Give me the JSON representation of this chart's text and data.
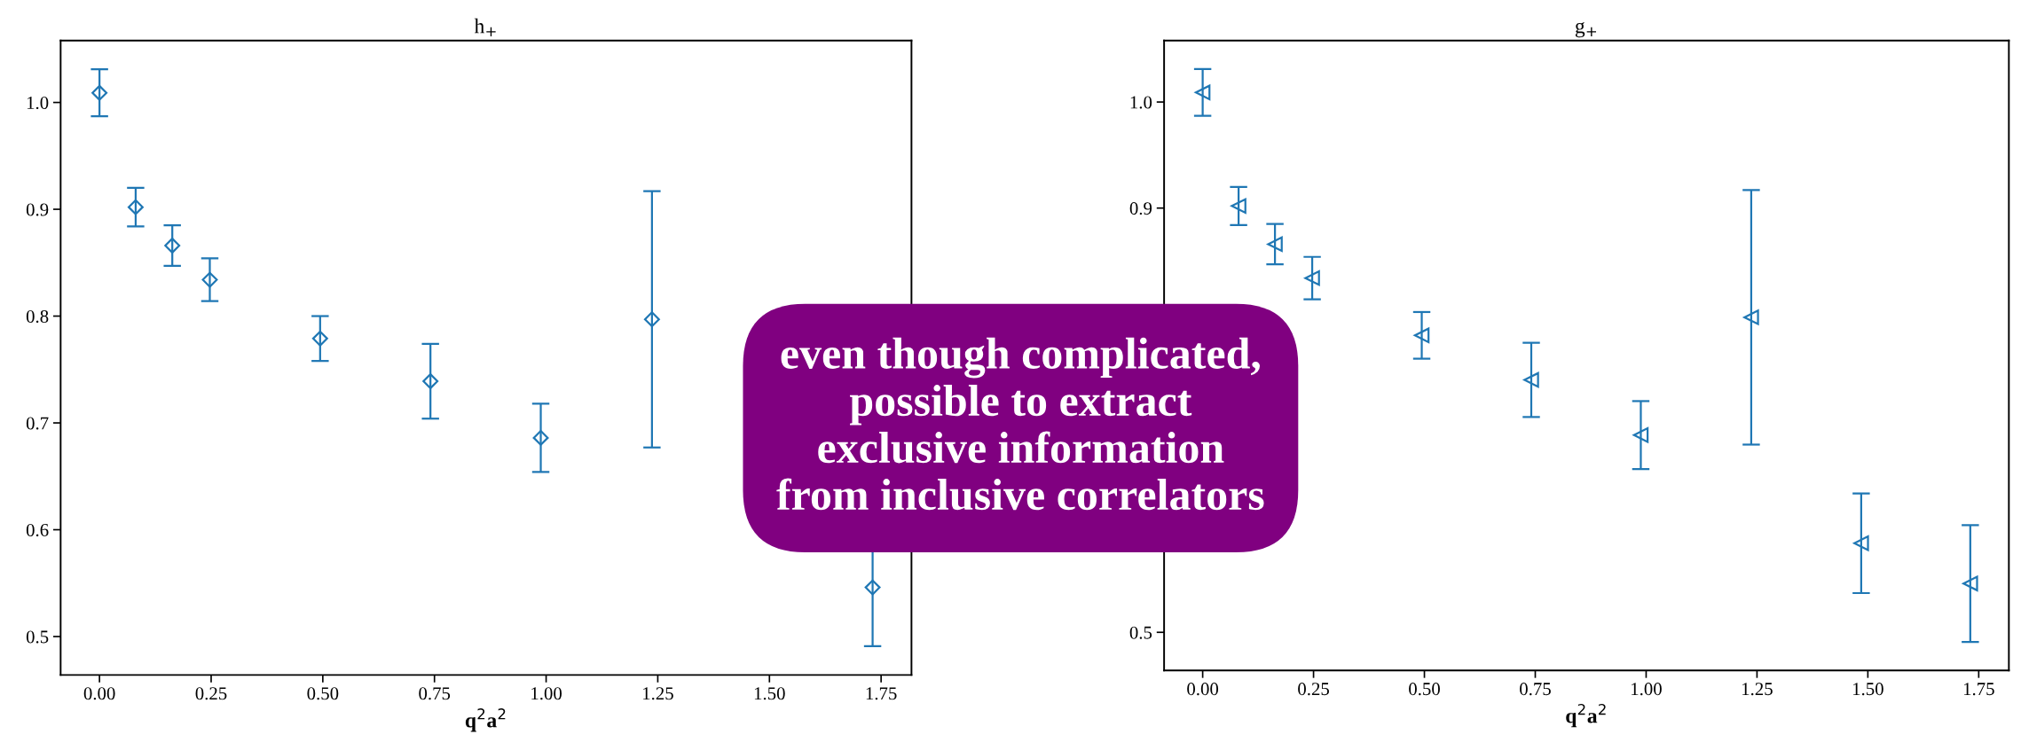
{
  "chart_data": [
    {
      "type": "scatter",
      "title": "h$_{+}$",
      "xlabel": "q$^{2}$a$^{2}$",
      "marker": "diamond",
      "grid": false,
      "legend": false,
      "x": [
        0.0,
        0.081,
        0.163,
        0.247,
        0.494,
        0.741,
        0.988,
        1.237,
        1.485,
        1.731
      ],
      "series": [
        {
          "color": "#1f77b4",
          "values": [
            1.009,
            0.902,
            0.866,
            0.834,
            0.779,
            0.739,
            0.686,
            0.797,
            null,
            0.546
          ],
          "errors": [
            0.022,
            0.018,
            0.019,
            0.02,
            0.021,
            0.035,
            0.032,
            0.12,
            null,
            0.055
          ]
        }
      ],
      "xlim": [
        -0.087,
        1.818
      ],
      "ylim": [
        0.464,
        1.058
      ],
      "xticks": [
        {
          "value": 0,
          "label": "0.00"
        },
        {
          "value": 0.25,
          "label": "0.25"
        },
        {
          "value": 0.5,
          "label": "0.50"
        },
        {
          "value": 0.75,
          "label": "0.75"
        },
        {
          "value": 1,
          "label": "1.00"
        },
        {
          "value": 1.25,
          "label": "1.25"
        },
        {
          "value": 1.5,
          "label": "1.50"
        },
        {
          "value": 1.75,
          "label": "1.75"
        }
      ],
      "yticks": [
        0.5,
        0.6,
        0.7,
        0.8,
        0.9,
        {
          "value": 1.0,
          "label": "1.0"
        }
      ],
      "annotations": [
        "even though complicated,\npossible to extract\nexclusive information\nfrom inclusive correlators"
      ]
    },
    {
      "type": "scatter",
      "title": "g$_{+}$",
      "xlabel": "q$^{2}$a$^{2}$",
      "marker": "triangle",
      "grid": false,
      "legend": false,
      "x": [
        0.0,
        0.081,
        0.163,
        0.247,
        0.494,
        0.741,
        0.988,
        1.237,
        1.485,
        1.731
      ],
      "series": [
        {
          "color": "#1f77b4",
          "values": [
            1.009,
            0.902,
            0.866,
            0.834,
            0.78,
            0.738,
            0.686,
            0.797,
            0.584,
            0.546
          ],
          "errors": [
            0.022,
            0.018,
            0.019,
            0.02,
            0.022,
            0.035,
            0.032,
            0.12,
            0.047,
            0.055
          ]
        }
      ],
      "xlim": [
        -0.087,
        1.818
      ],
      "ylim": [
        0.464,
        1.058
      ],
      "xticks": [
        {
          "value": 0,
          "label": "0.00"
        },
        {
          "value": 0.25,
          "label": "0.25"
        },
        {
          "value": 0.5,
          "label": "0.50"
        },
        {
          "value": 0.75,
          "label": "0.75"
        },
        {
          "value": 1,
          "label": "1.00"
        },
        {
          "value": 1.25,
          "label": "1.25"
        },
        {
          "value": 1.5,
          "label": "1.50"
        },
        {
          "value": 1.75,
          "label": "1.75"
        }
      ],
      "yticks": [
        0.5,
        0.9,
        {
          "value": 1.0,
          "label": "1.0"
        }
      ]
    }
  ]
}
